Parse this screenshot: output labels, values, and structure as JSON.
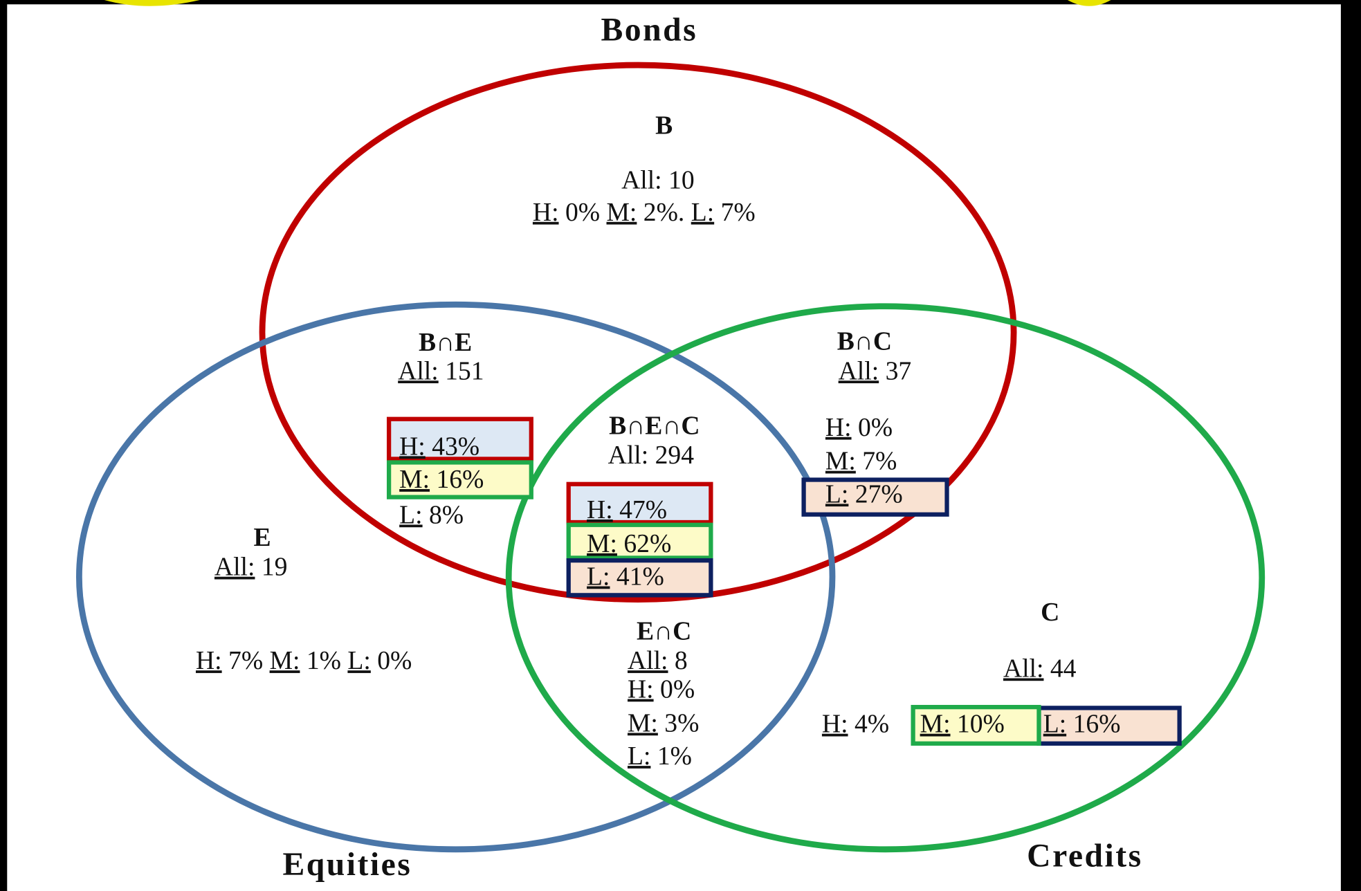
{
  "sets": {
    "bonds": "Bonds",
    "equities": "Equities",
    "credits": "Credits"
  },
  "labels": {
    "all": "All:",
    "h": "H:",
    "m": "M:",
    "l": "L:"
  },
  "regions": {
    "b": {
      "name": "B",
      "all": 10,
      "h": "0%",
      "m": "2%.",
      "l": "7%"
    },
    "be": {
      "name": "B∩E",
      "all": 151,
      "h": "43%",
      "m": "16%",
      "l": "8%"
    },
    "bec": {
      "name": "B∩E∩C",
      "all": 294,
      "h": "47%",
      "m": "62%",
      "l": "41%"
    },
    "bc": {
      "name": "B∩C",
      "all": 37,
      "h": "0%",
      "m": "7%",
      "l": "27%"
    },
    "e": {
      "name": "E",
      "all": 19,
      "h": "7%",
      "m": "1%",
      "l": "0%"
    },
    "ec": {
      "name": "E∩C",
      "all": 8,
      "h": "0%",
      "m": "3%",
      "l": "1%"
    },
    "c": {
      "name": "C",
      "all": 44,
      "h": "4%",
      "m": "10%",
      "l": "16%"
    }
  }
}
